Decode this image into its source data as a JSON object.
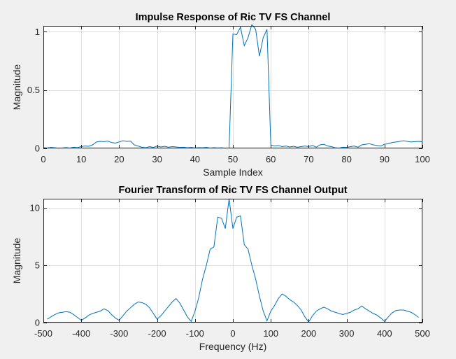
{
  "chart_data": [
    {
      "type": "line",
      "title": "Impulse Response of Ric TV FS Channel",
      "xlabel": "Sample Index",
      "ylabel": "Magnitude",
      "xlim": [
        0,
        100
      ],
      "ylim": [
        0,
        1.05
      ],
      "xticks": [
        0,
        10,
        20,
        30,
        40,
        50,
        60,
        70,
        80,
        90,
        100
      ],
      "yticks": [
        0,
        0.5,
        1
      ],
      "ytick_labels": [
        "0",
        "0.5",
        "1"
      ],
      "grid": true,
      "line_color": "#0072bd",
      "series": [
        {
          "x": [
            0,
            1,
            2,
            3,
            4,
            5,
            6,
            7,
            8,
            9,
            10,
            11,
            12,
            13,
            14,
            15,
            16,
            17,
            18,
            19,
            20,
            21,
            22,
            23,
            24,
            25,
            26,
            27,
            28,
            29,
            30,
            31,
            32,
            33,
            34,
            35,
            36,
            37,
            38,
            39,
            40,
            41,
            42,
            43,
            44,
            45,
            46,
            47,
            48,
            49,
            50,
            51,
            52,
            53,
            54,
            55,
            56,
            57,
            58,
            59,
            60,
            61,
            62,
            63,
            64,
            65,
            66,
            67,
            68,
            69,
            70,
            71,
            72,
            73,
            74,
            75,
            76,
            77,
            78,
            79,
            80,
            81,
            82,
            83,
            84,
            85,
            86,
            87,
            88,
            89,
            90,
            91,
            92,
            93,
            94,
            95,
            96,
            97,
            98,
            99,
            100
          ],
          "values": [
            0.006,
            0.003,
            0.008,
            0.005,
            0.002,
            0.004,
            0.007,
            0.003,
            0.01,
            0.006,
            0.015,
            0.02,
            0.018,
            0.03,
            0.055,
            0.06,
            0.058,
            0.062,
            0.05,
            0.045,
            0.055,
            0.065,
            0.06,
            0.062,
            0.03,
            0.02,
            0.01,
            0.005,
            0.015,
            0.008,
            0.02,
            0.012,
            0.018,
            0.01,
            0.015,
            0.012,
            0.008,
            0.01,
            0.005,
            0.008,
            0.004,
            0.006,
            0.005,
            0.008,
            0.003,
            0.006,
            0.004,
            0.005,
            0.002,
            0.004,
            0.98,
            0.975,
            1.04,
            0.88,
            0.95,
            1.06,
            1.02,
            0.79,
            0.95,
            1.02,
            0.03,
            0.02,
            0.025,
            0.015,
            0.02,
            0.012,
            0.018,
            0.01,
            0.015,
            0.02,
            0.015,
            0.025,
            0.01,
            0.03,
            0.035,
            0.02,
            0.015,
            0.005,
            0.002,
            0.01,
            0.008,
            0.015,
            0.02,
            0.01,
            0.03,
            0.035,
            0.04,
            0.03,
            0.025,
            0.02,
            0.035,
            0.04,
            0.05,
            0.055,
            0.06,
            0.065,
            0.06,
            0.055,
            0.058,
            0.06,
            0.055
          ]
        }
      ]
    },
    {
      "type": "line",
      "title": "Fourier Transform of Ric TV FS Channel Output",
      "xlabel": "Frequency (Hz)",
      "ylabel": "Magnitude",
      "xlim": [
        -500,
        500
      ],
      "ylim": [
        0,
        10.8
      ],
      "xticks": [
        -500,
        -400,
        -300,
        -200,
        -100,
        0,
        100,
        200,
        300,
        400,
        500
      ],
      "yticks": [
        0,
        5,
        10
      ],
      "ytick_labels": [
        "0",
        "5",
        "10"
      ],
      "grid": true,
      "line_color": "#0072bd",
      "series": [
        {
          "x": [
            -490,
            -480,
            -470,
            -460,
            -450,
            -440,
            -430,
            -420,
            -410,
            -400,
            -390,
            -380,
            -370,
            -360,
            -350,
            -340,
            -330,
            -320,
            -310,
            -300,
            -290,
            -280,
            -270,
            -260,
            -250,
            -240,
            -230,
            -220,
            -210,
            -200,
            -190,
            -180,
            -170,
            -160,
            -150,
            -140,
            -130,
            -120,
            -110,
            -100,
            -90,
            -80,
            -70,
            -60,
            -50,
            -40,
            -30,
            -20,
            -10,
            0,
            10,
            20,
            30,
            40,
            50,
            60,
            70,
            80,
            90,
            100,
            110,
            120,
            130,
            140,
            150,
            160,
            170,
            180,
            190,
            200,
            210,
            220,
            230,
            240,
            250,
            260,
            270,
            280,
            290,
            300,
            310,
            320,
            330,
            340,
            350,
            360,
            370,
            380,
            390,
            400,
            410,
            420,
            430,
            440,
            450,
            460,
            470,
            480,
            490
          ],
          "values": [
            0.3,
            0.5,
            0.7,
            0.85,
            0.9,
            0.95,
            0.9,
            0.7,
            0.45,
            0.2,
            0.4,
            0.65,
            0.8,
            0.9,
            1.0,
            1.2,
            1.05,
            0.7,
            0.4,
            0.2,
            0.6,
            1.0,
            1.3,
            1.6,
            1.8,
            1.75,
            1.6,
            1.3,
            0.8,
            0.3,
            0.6,
            1.0,
            1.4,
            1.8,
            2.1,
            1.7,
            1.1,
            0.5,
            0.1,
            1.0,
            2.2,
            3.8,
            5.0,
            6.4,
            6.6,
            9.2,
            9.1,
            8.2,
            10.8,
            8.2,
            9.2,
            9.3,
            6.8,
            6.4,
            5.0,
            3.8,
            2.3,
            1.0,
            0.15,
            1.0,
            1.5,
            2.1,
            2.5,
            2.3,
            2.0,
            1.8,
            1.5,
            1.1,
            0.5,
            0.05,
            0.6,
            1.0,
            1.2,
            1.35,
            1.2,
            1.0,
            0.9,
            0.8,
            0.7,
            0.8,
            0.9,
            1.1,
            1.2,
            1.45,
            1.2,
            1.0,
            0.8,
            0.65,
            0.4,
            0.1,
            0.5,
            0.85,
            1.05,
            1.1,
            1.1,
            1.0,
            0.9,
            0.7,
            0.45
          ]
        }
      ]
    }
  ]
}
